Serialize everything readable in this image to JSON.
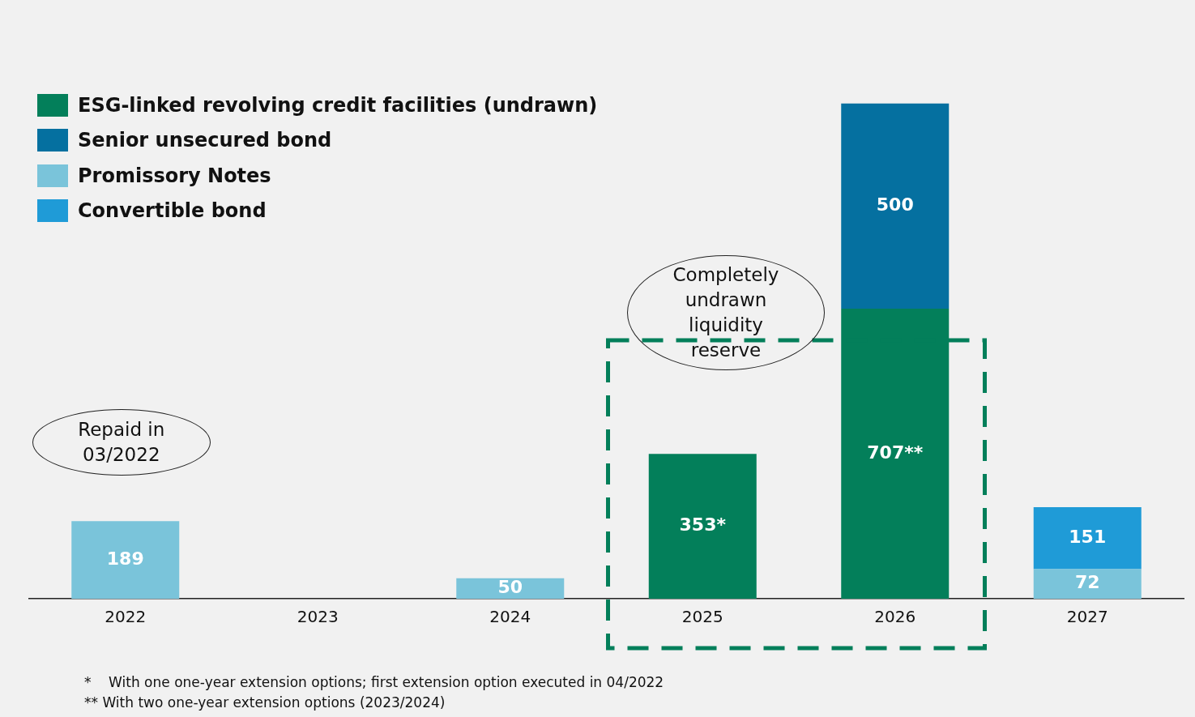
{
  "chart_data": {
    "type": "bar",
    "stacked": true,
    "categories": [
      "2022",
      "2023",
      "2024",
      "2025",
      "2026",
      "2027"
    ],
    "series": [
      {
        "name": "ESG-linked revolving credit facilities (undrawn)",
        "color": "#037f5a",
        "values": [
          null,
          null,
          null,
          353,
          707,
          null
        ],
        "value_labels": [
          null,
          null,
          null,
          "353*",
          "707**",
          null
        ]
      },
      {
        "name": "Senior unsecured bond",
        "color": "#0570a0",
        "values": [
          null,
          null,
          null,
          null,
          500,
          null
        ],
        "value_labels": [
          null,
          null,
          null,
          null,
          "500",
          null
        ]
      },
      {
        "name": "Promissory Notes",
        "color": "#7ac4da",
        "values": [
          189,
          null,
          50,
          null,
          null,
          72
        ],
        "value_labels": [
          "189",
          null,
          "50",
          null,
          null,
          "72"
        ]
      },
      {
        "name": "Convertible bond",
        "color": "#1f9bd7",
        "values": [
          null,
          null,
          null,
          null,
          null,
          151
        ],
        "value_labels": [
          null,
          null,
          null,
          null,
          null,
          "151"
        ]
      }
    ],
    "legend": "top left",
    "grid": false,
    "annotations": [
      "Repaid in 03/2022",
      "Completely undrawn liquidity reserve",
      "*    With one one-year extension options; first extension option executed in 04/2022",
      "** With two one-year extension options (2023/2024)"
    ]
  }
}
